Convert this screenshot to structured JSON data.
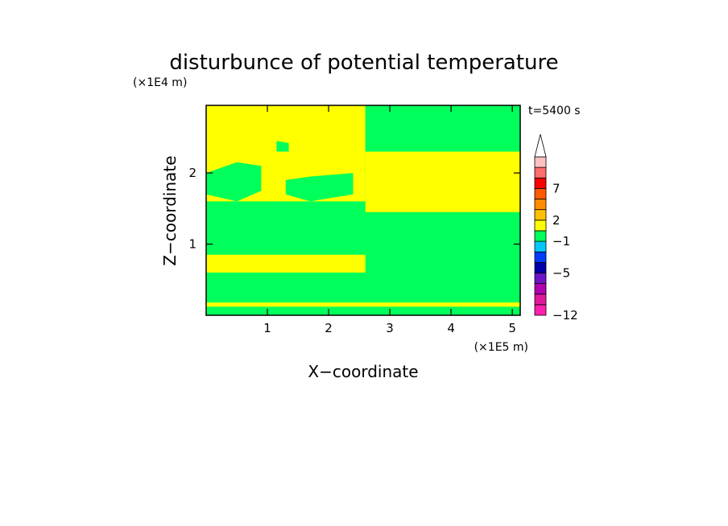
{
  "chart_data": {
    "type": "heatmap",
    "title": "disturbunce of potential temperature",
    "xlabel": "X−coordinate",
    "ylabel": "Z−coordinate",
    "x_scale_label": "(×1E5 m)",
    "y_scale_label": "(×1E4 m)",
    "time_label": "t=5400 s",
    "xlim": [
      0,
      5.13
    ],
    "ylim": [
      0,
      2.95
    ],
    "x_ticks": [
      1,
      2,
      3,
      4,
      5
    ],
    "y_ticks": [
      1,
      2
    ],
    "fields": {
      "background_level": "green",
      "regions": [
        {
          "level": "yellow",
          "polygon": [
            [
              0,
              2.95
            ],
            [
              2.6,
              2.95
            ],
            [
              2.6,
              1.6
            ],
            [
              0,
              1.6
            ]
          ]
        },
        {
          "level": "yellow",
          "polygon": [
            [
              2.6,
              2.3
            ],
            [
              5.13,
              2.3
            ],
            [
              5.13,
              1.45
            ],
            [
              2.6,
              1.45
            ]
          ]
        },
        {
          "level": "yellow",
          "polygon": [
            [
              0,
              0.85
            ],
            [
              2.6,
              0.85
            ],
            [
              2.6,
              0.6
            ],
            [
              0,
              0.6
            ]
          ]
        },
        {
          "level": "yellow",
          "polygon": [
            [
              0,
              0.18
            ],
            [
              5.13,
              0.18
            ],
            [
              5.13,
              0.12
            ],
            [
              0,
              0.12
            ]
          ]
        },
        {
          "level": "green",
          "polygon": [
            [
              0,
              2.0
            ],
            [
              0.5,
              2.15
            ],
            [
              0.9,
              2.1
            ],
            [
              0.9,
              1.75
            ],
            [
              0.5,
              1.6
            ],
            [
              0,
              1.7
            ]
          ]
        },
        {
          "level": "green",
          "polygon": [
            [
              1.3,
              1.9
            ],
            [
              1.7,
              1.95
            ],
            [
              2.4,
              2.0
            ],
            [
              2.4,
              1.7
            ],
            [
              1.7,
              1.6
            ],
            [
              1.3,
              1.7
            ]
          ]
        },
        {
          "level": "green",
          "polygon": [
            [
              0.85,
              1.5
            ],
            [
              1.15,
              1.6
            ],
            [
              1.65,
              1.55
            ],
            [
              1.9,
              1.45
            ],
            [
              1.65,
              1.3
            ],
            [
              1.15,
              1.25
            ],
            [
              0.85,
              1.3
            ]
          ]
        },
        {
          "level": "green",
          "polygon": [
            [
              1.15,
              2.45
            ],
            [
              1.35,
              2.42
            ],
            [
              1.35,
              2.3
            ],
            [
              1.15,
              2.3
            ]
          ]
        },
        {
          "level": "green",
          "polygon": [
            [
              2.6,
              2.95
            ],
            [
              5.13,
              2.95
            ],
            [
              5.13,
              2.3
            ],
            [
              4.4,
              2.45
            ],
            [
              3.8,
              2.6
            ],
            [
              3.3,
              2.3
            ],
            [
              2.6,
              2.3
            ]
          ]
        }
      ]
    },
    "colorbar": {
      "levels": [
        {
          "color": "#ff1fb0"
        },
        {
          "color": "#e0199c"
        },
        {
          "color": "#b000b0"
        },
        {
          "color": "#6b15c6"
        },
        {
          "color": "#0000a8"
        },
        {
          "color": "#003cff"
        },
        {
          "color": "#00c8ff"
        },
        {
          "color": "#00ff5a"
        },
        {
          "color": "#ffff00"
        },
        {
          "color": "#ffc000"
        },
        {
          "color": "#ff8c00"
        },
        {
          "color": "#ff5a00"
        },
        {
          "color": "#ff0000"
        },
        {
          "color": "#ff6e6e"
        },
        {
          "color": "#ffc0c0"
        }
      ],
      "tick_labels": [
        {
          "text": "−12",
          "index": 0
        },
        {
          "text": "−5",
          "index": 4
        },
        {
          "text": "−1",
          "index": 7
        },
        {
          "text": "2",
          "index": 9
        },
        {
          "text": "7",
          "index": 12
        }
      ],
      "level_colors": {
        "green": "#00ff5a",
        "yellow": "#ffff00"
      }
    }
  }
}
